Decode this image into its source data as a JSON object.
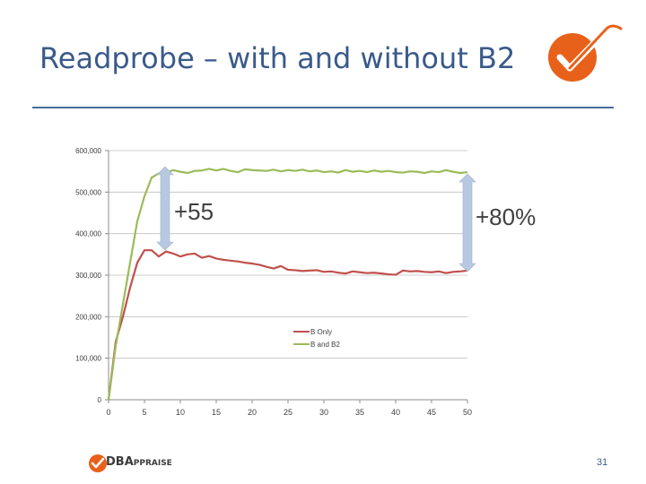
{
  "slide": {
    "title": "Readprobe – with and without B2",
    "page_number": "31",
    "footer_logo": "DBAppraise",
    "footer_logo_main": "DBA",
    "footer_logo_rest": "PPRAISE",
    "accent_color": "#e8611a",
    "title_color": "#3a5a8a"
  },
  "annotations": {
    "left": "+55",
    "right": "+80%",
    "arrow_color": "#b8c8e0"
  },
  "chart_data": {
    "type": "line",
    "title": "",
    "xlabel": "",
    "ylabel": "",
    "xlim": [
      0,
      50
    ],
    "ylim": [
      0,
      600000
    ],
    "xticks": [
      0,
      5,
      10,
      15,
      20,
      25,
      30,
      35,
      40,
      45,
      50
    ],
    "yticks": [
      0,
      100000,
      200000,
      300000,
      400000,
      500000,
      600000
    ],
    "ytick_labels": [
      "0",
      "100,000",
      "200,000",
      "300,000",
      "400,000",
      "500,000",
      "600,000"
    ],
    "grid": "horizontal",
    "legend": "center-right",
    "x": [
      0,
      1,
      2,
      3,
      4,
      5,
      6,
      7,
      8,
      9,
      10,
      11,
      12,
      13,
      14,
      15,
      16,
      17,
      18,
      19,
      20,
      21,
      22,
      23,
      24,
      25,
      26,
      27,
      28,
      29,
      30,
      31,
      32,
      33,
      34,
      35,
      36,
      37,
      38,
      39,
      40,
      41,
      42,
      43,
      44,
      45,
      46,
      47,
      48,
      49,
      50
    ],
    "series": [
      {
        "name": "B Only",
        "color": "#c0504d",
        "values": [
          0,
          140000,
          200000,
          270000,
          330000,
          360000,
          360000,
          345000,
          357000,
          352000,
          345000,
          350000,
          352000,
          342000,
          346000,
          340000,
          337000,
          335000,
          333000,
          330000,
          328000,
          325000,
          320000,
          316000,
          322000,
          313000,
          312000,
          310000,
          311000,
          312000,
          308000,
          309000,
          306000,
          304000,
          309000,
          307000,
          305000,
          306000,
          304000,
          302000,
          301000,
          311000,
          309000,
          310000,
          308000,
          307000,
          309000,
          305000,
          308000,
          309000,
          311000
        ]
      },
      {
        "name": "B and B2",
        "color": "#9bbb59",
        "values": [
          0,
          130000,
          230000,
          330000,
          430000,
          490000,
          535000,
          545000,
          546000,
          553000,
          549000,
          546000,
          551000,
          552000,
          556000,
          552000,
          556000,
          551000,
          548000,
          555000,
          553000,
          552000,
          551000,
          554000,
          550000,
          553000,
          551000,
          554000,
          550000,
          552000,
          548000,
          550000,
          547000,
          553000,
          549000,
          551000,
          548000,
          552000,
          549000,
          551000,
          548000,
          547000,
          550000,
          549000,
          546000,
          550000,
          548000,
          553000,
          549000,
          546000,
          548000
        ]
      }
    ]
  }
}
